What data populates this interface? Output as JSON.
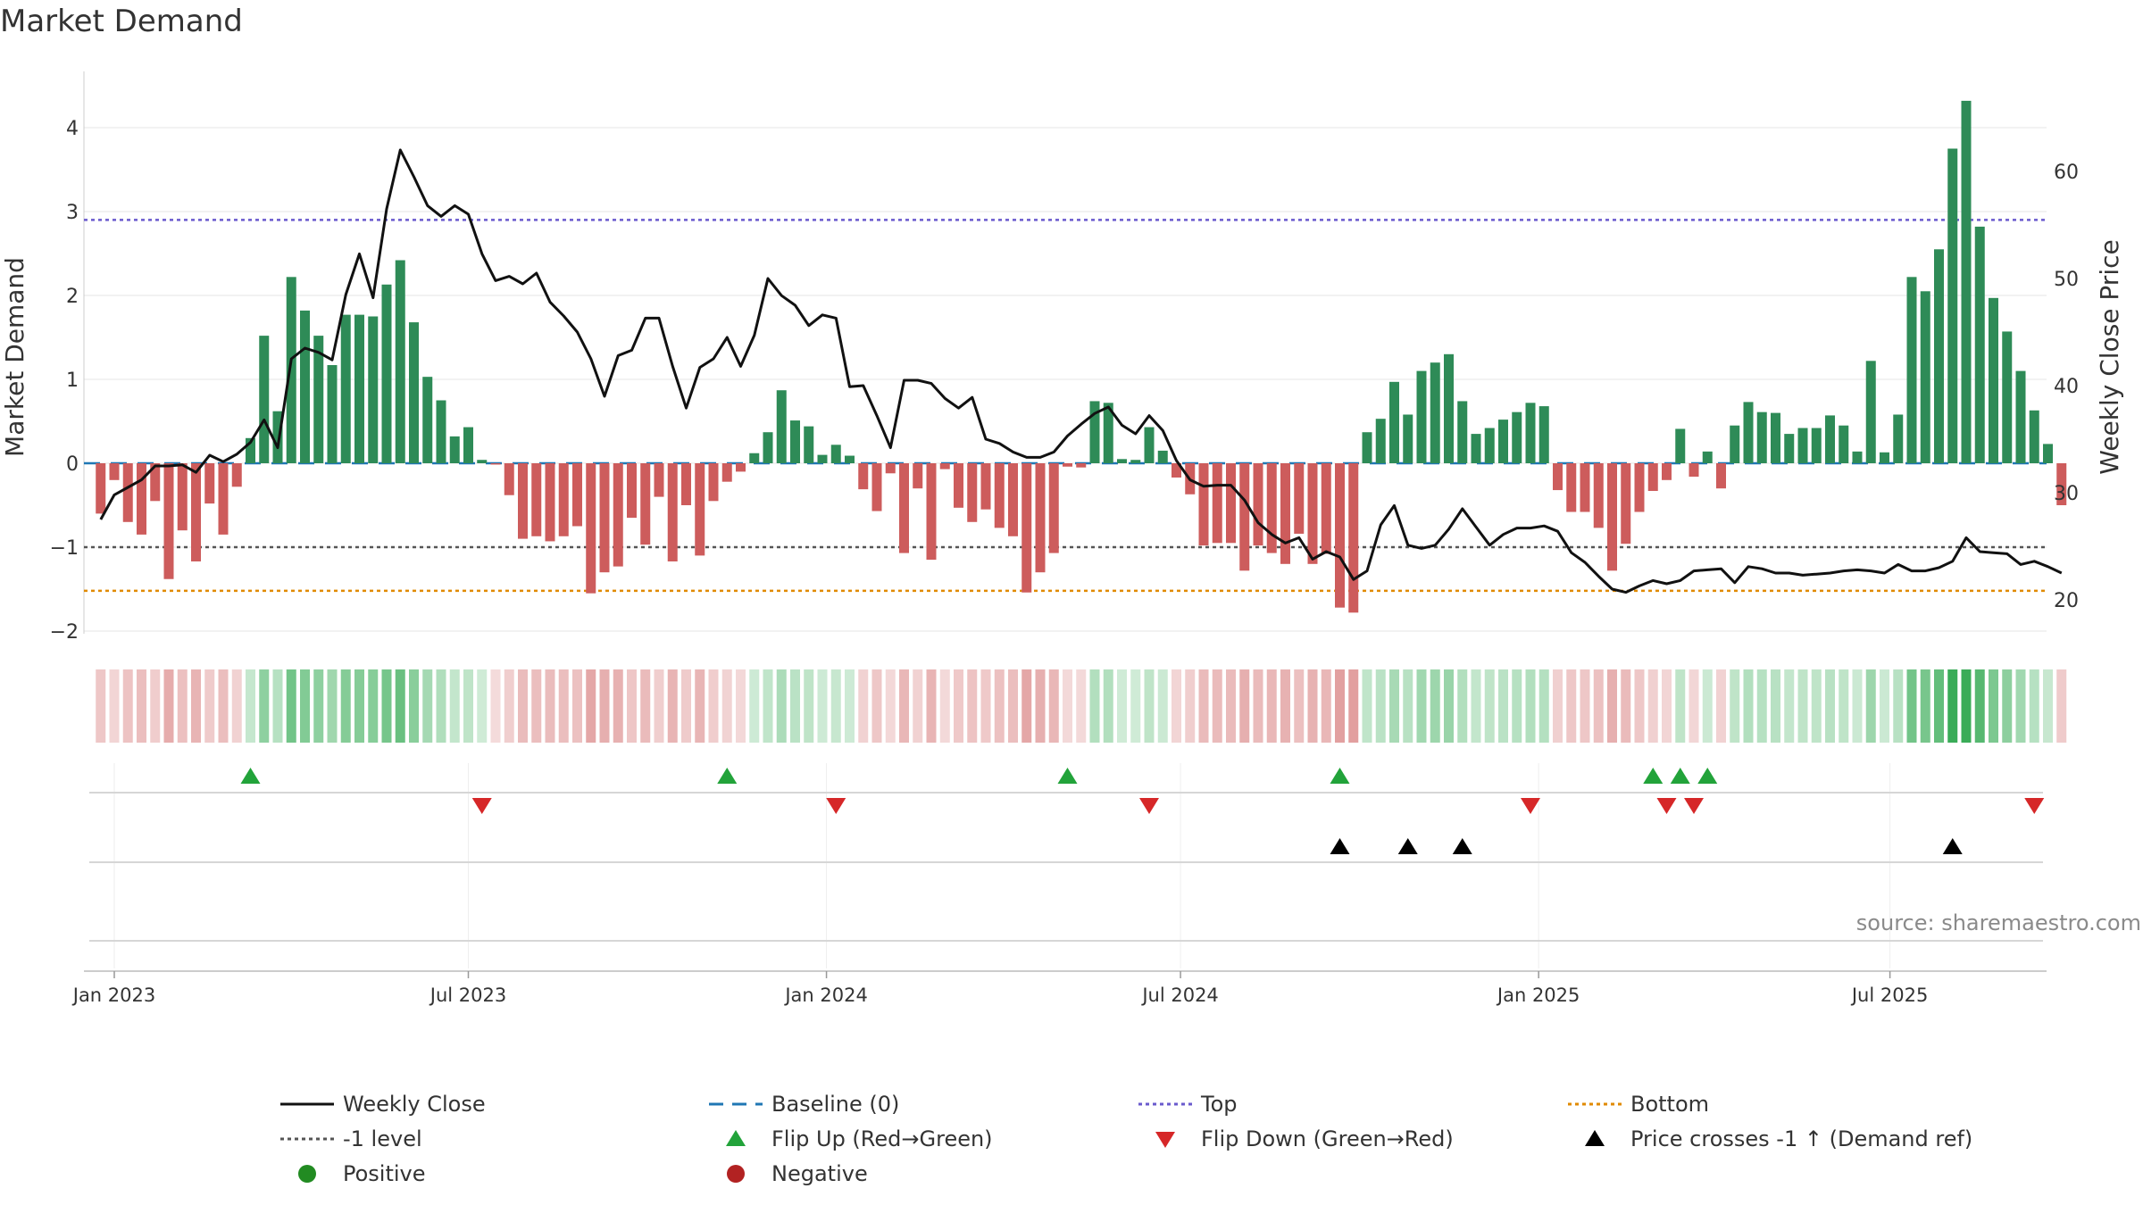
{
  "title": "Market Demand",
  "source": "source: sharemaestro.com",
  "colors": {
    "positive": "#2e8b57",
    "negative": "#cd5c5c",
    "close": "#111111",
    "baseline": "#1f77b4",
    "top": "#6a5acd",
    "bottom": "#e08a00",
    "minus_one": "#555555",
    "flip_up": "#22a33a",
    "flip_down": "#d62728",
    "cross": "#000000",
    "dot_positive": "#228b22",
    "dot_negative": "#b22222",
    "grid": "#e6e6e6"
  },
  "chart_data": {
    "type": "bar+line",
    "title": "Market Demand",
    "ylabel_left": "Market Demand",
    "ylabel_right": "Weekly Close Price",
    "ylim_left": [
      -2.3,
      4.55
    ],
    "ylim_right": [
      17.6,
      70.9
    ],
    "yticks_left": [
      -2,
      -1,
      0,
      1,
      2,
      3,
      4
    ],
    "yticks_right": [
      20,
      30,
      40,
      50,
      60
    ],
    "x_start_week": -1,
    "x_ticks": [
      {
        "label": "Jan 2023",
        "week": 0
      },
      {
        "label": "Jul 2023",
        "week": 26
      },
      {
        "label": "Jan 2024",
        "week": 52.3
      },
      {
        "label": "Jul 2024",
        "week": 78.3
      },
      {
        "label": "Jan 2025",
        "week": 104.6
      },
      {
        "label": "Jul 2025",
        "week": 130.4
      }
    ],
    "levels": {
      "baseline": 0,
      "top": 2.9,
      "bottom": -1.52,
      "minus_one": -1.0
    },
    "demand": [
      -0.6,
      -0.2,
      -0.7,
      -0.85,
      -0.45,
      -1.38,
      -0.8,
      -1.17,
      -0.48,
      -0.85,
      -0.28,
      0.3,
      1.52,
      0.62,
      2.22,
      1.82,
      1.52,
      1.17,
      1.77,
      1.77,
      1.75,
      2.13,
      2.42,
      1.68,
      1.03,
      0.75,
      0.32,
      0.43,
      0.04,
      -0.01,
      -0.38,
      -0.9,
      -0.87,
      -0.93,
      -0.87,
      -0.75,
      -1.55,
      -1.3,
      -1.23,
      -0.65,
      -0.97,
      -0.4,
      -1.17,
      -0.5,
      -1.1,
      -0.45,
      -0.22,
      -0.1,
      0.12,
      0.37,
      0.87,
      0.51,
      0.44,
      0.1,
      0.22,
      0.09,
      -0.31,
      -0.57,
      -0.12,
      -1.07,
      -0.3,
      -1.15,
      -0.07,
      -0.53,
      -0.7,
      -0.55,
      -0.77,
      -0.87,
      -1.54,
      -1.3,
      -1.07,
      -0.04,
      -0.05,
      0.74,
      0.72,
      0.05,
      0.04,
      0.43,
      0.15,
      -0.17,
      -0.37,
      -0.98,
      -0.95,
      -0.95,
      -1.28,
      -0.98,
      -1.07,
      -1.2,
      -0.84,
      -1.2,
      -1.08,
      -1.72,
      -1.78,
      0.37,
      0.53,
      0.97,
      0.58,
      1.1,
      1.2,
      1.3,
      0.74,
      0.35,
      0.42,
      0.52,
      0.61,
      0.72,
      0.68,
      -0.32,
      -0.58,
      -0.58,
      -0.77,
      -1.28,
      -0.96,
      -0.58,
      -0.33,
      -0.2,
      0.41,
      -0.16,
      0.14,
      -0.3,
      0.45,
      0.73,
      0.61,
      0.6,
      0.35,
      0.42,
      0.42,
      0.57,
      0.45,
      0.14,
      1.22,
      0.13,
      0.58,
      2.22,
      2.05,
      2.55,
      3.75,
      4.32,
      2.82,
      1.97,
      1.57,
      1.1,
      0.63,
      0.23,
      -0.5
    ],
    "weekly_close": [
      27.5,
      29.8,
      30.5,
      31.2,
      32.5,
      32.5,
      32.6,
      31.9,
      33.5,
      32.9,
      33.6,
      34.7,
      36.8,
      34.2,
      42.5,
      43.5,
      43.1,
      42.4,
      48.5,
      52.3,
      48.2,
      56.5,
      62.0,
      59.5,
      56.8,
      55.8,
      56.8,
      56.0,
      52.3,
      49.8,
      50.2,
      49.5,
      50.5,
      47.8,
      46.5,
      45.0,
      42.5,
      39.0,
      42.8,
      43.3,
      46.3,
      46.3,
      41.8,
      37.9,
      41.7,
      42.5,
      44.5,
      41.8,
      44.7,
      50.0,
      48.4,
      47.5,
      45.6,
      46.6,
      46.3,
      39.9,
      40.0,
      37.2,
      34.2,
      40.5,
      40.5,
      40.2,
      38.8,
      37.9,
      38.9,
      35.0,
      34.6,
      33.8,
      33.3,
      33.3,
      33.8,
      35.3,
      36.4,
      37.4,
      38.0,
      36.3,
      35.5,
      37.2,
      35.8,
      33.0,
      31.2,
      30.6,
      30.7,
      30.7,
      29.3,
      27.2,
      26.1,
      25.3,
      25.8,
      23.8,
      24.5,
      24.0,
      21.9,
      22.7,
      27.0,
      28.8,
      25.1,
      24.8,
      25.1,
      26.6,
      28.5,
      26.8,
      25.1,
      26.1,
      26.7,
      26.7,
      26.9,
      26.4,
      24.4,
      23.5,
      22.2,
      21.0,
      20.7,
      21.3,
      21.8,
      21.5,
      21.8,
      22.7,
      22.8,
      22.9,
      21.6,
      23.1,
      22.9,
      22.5,
      22.5,
      22.3,
      22.4,
      22.5,
      22.7,
      22.8,
      22.7,
      22.5,
      23.3,
      22.7,
      22.7,
      23.0,
      23.6,
      25.8,
      24.5,
      24.4,
      24.3,
      23.3,
      23.6,
      23.1,
      22.5
    ],
    "flip_up_weeks": [
      10,
      45,
      70,
      90,
      113,
      115,
      117
    ],
    "flip_down_weeks": [
      27,
      53,
      76,
      104,
      114,
      116,
      141
    ],
    "price_cross_weeks": [
      90,
      95,
      99,
      135
    ],
    "series": [
      {
        "name": "Weekly Close",
        "kind": "line"
      },
      {
        "name": "Market Demand",
        "kind": "bar"
      }
    ]
  },
  "legend": [
    {
      "label": "Weekly Close",
      "symbol": "solid-line",
      "color": "#111111"
    },
    {
      "label": "Baseline (0)",
      "symbol": "dashed-line",
      "color": "#1f77b4"
    },
    {
      "label": "Top",
      "symbol": "dotted-line",
      "color": "#6a5acd"
    },
    {
      "label": "Bottom",
      "symbol": "dotted-line",
      "color": "#e08a00"
    },
    {
      "label": "-1 level",
      "symbol": "dotted-line",
      "color": "#555555"
    },
    {
      "label": "Flip Up (Red→Green)",
      "symbol": "triangle-up",
      "color": "#22a33a"
    },
    {
      "label": "Flip Down (Green→Red)",
      "symbol": "triangle-down",
      "color": "#d62728"
    },
    {
      "label": "Price crosses -1 ↑ (Demand ref)",
      "symbol": "triangle-up",
      "color": "#000000"
    },
    {
      "label": "Positive",
      "symbol": "circle",
      "color": "#228b22"
    },
    {
      "label": "Negative",
      "symbol": "circle",
      "color": "#b22222"
    }
  ]
}
